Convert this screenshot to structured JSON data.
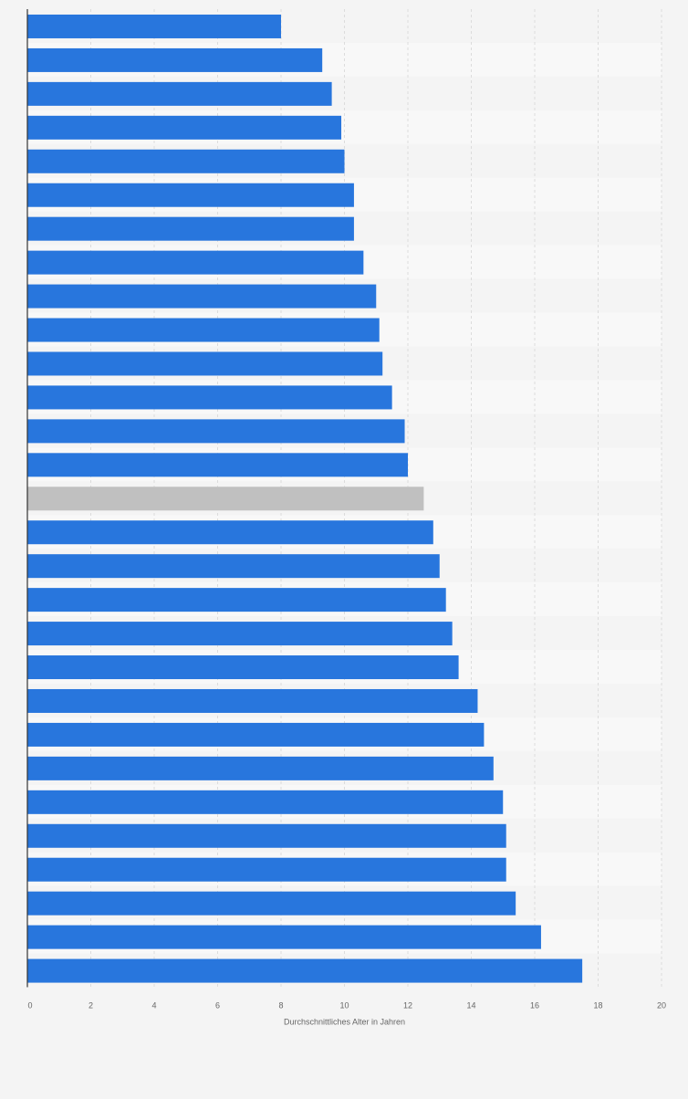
{
  "chart_data": {
    "type": "bar",
    "orientation": "horizontal",
    "title": "",
    "xlabel": "Durchschnittliches Alter in Jahren",
    "ylabel": "",
    "xlim": [
      0,
      20
    ],
    "xticks": [
      "0",
      "2",
      "4",
      "6",
      "8",
      "10",
      "12",
      "14",
      "16",
      "18",
      "20"
    ],
    "grid": true,
    "legend": "none",
    "categories": [
      "",
      "",
      "",
      "",
      "",
      "",
      "",
      "",
      "",
      "",
      "",
      "",
      "",
      "",
      "",
      "",
      "",
      "",
      "",
      "",
      "",
      "",
      "",
      "",
      "",
      "",
      "",
      "",
      ""
    ],
    "values": [
      8.0,
      9.3,
      9.6,
      9.9,
      10.0,
      10.3,
      10.3,
      10.6,
      11.0,
      11.1,
      11.2,
      11.5,
      11.9,
      12.0,
      12.5,
      12.8,
      13.0,
      13.2,
      13.4,
      13.6,
      14.2,
      14.4,
      14.7,
      15.0,
      15.1,
      15.1,
      15.4,
      16.2,
      17.5
    ],
    "highlight_index": 14,
    "colors": {
      "bar": "#2876dd",
      "highlight": "#c0c0c0",
      "band_a": "#f4f4f4",
      "band_b": "#f8f8f8",
      "grid": "#dcdcdc",
      "axis": "#333333",
      "tick_text": "#666666"
    }
  }
}
